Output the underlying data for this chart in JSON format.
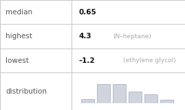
{
  "rows": [
    {
      "label": "median",
      "value": "0.65",
      "note": ""
    },
    {
      "label": "highest",
      "value": "4.3",
      "note": "(N–heptane)"
    },
    {
      "label": "lowest",
      "value": "–1.2",
      "note": "(ethylene glycol)"
    },
    {
      "label": "distribution",
      "value": "",
      "note": ""
    }
  ],
  "hist_bars": [
    0.22,
    1.0,
    1.0,
    0.62,
    0.48,
    0.18
  ],
  "bar_color": "#d0d4de",
  "bar_edge_color": "#b0b4c4",
  "bg_color": "#ffffff",
  "border_color": "#c8c8c8",
  "label_color": "#555555",
  "value_color": "#111111",
  "note_color": "#aaaaaa",
  "label_fontsize": 7.5,
  "value_fontsize": 7.5,
  "note_fontsize": 6.5,
  "col_split": 0.385
}
